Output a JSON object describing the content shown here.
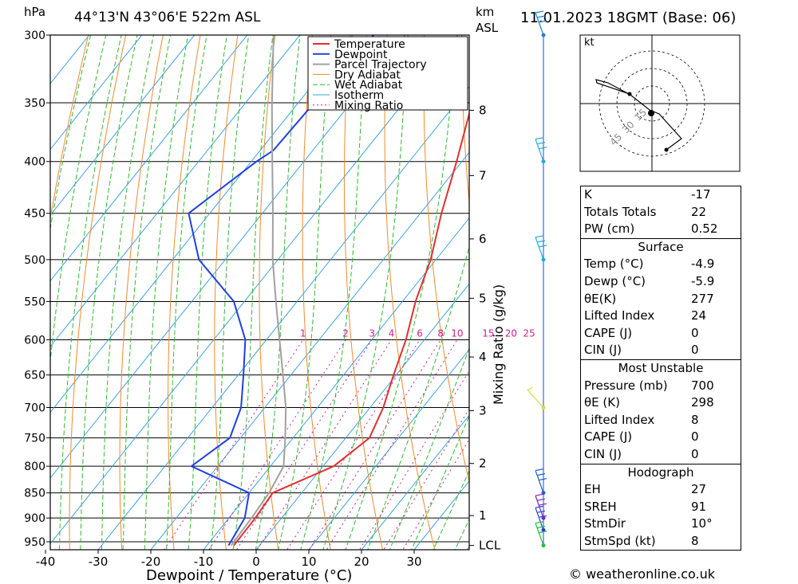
{
  "header": {
    "location": "44°13'N  43°06'E  522m  ASL",
    "datetime": "11.01.2023  18GMT  (Base: 06)",
    "unit_left": "hPa",
    "unit_km": "km",
    "unit_asl": "ASL"
  },
  "chart_data": {
    "type": "line",
    "title": "44°13'N  43°06'E  522m  ASL",
    "xlabel": "Dewpoint / Temperature (°C)",
    "ylabel": "hPa",
    "right_label": "Mixing Ratio (g/kg)",
    "x_ticks": [
      -40,
      -30,
      -20,
      -10,
      0,
      10,
      20,
      30
    ],
    "pressure_levels": [
      300,
      350,
      400,
      450,
      500,
      550,
      600,
      650,
      700,
      750,
      800,
      850,
      900,
      950
    ],
    "height_km_ticks": [
      {
        "label": "8",
        "p": 356
      },
      {
        "label": "7",
        "p": 413
      },
      {
        "label": "6",
        "p": 477
      },
      {
        "label": "5",
        "p": 546
      },
      {
        "label": "4",
        "p": 624
      },
      {
        "label": "3",
        "p": 705
      },
      {
        "label": "2",
        "p": 795
      },
      {
        "label": "1",
        "p": 895
      },
      {
        "label": "LCL",
        "p": 958
      }
    ],
    "mixing_ratio_labels": [
      "1",
      "2",
      "3",
      "4",
      "6",
      "8",
      "10",
      "15",
      "20",
      "25"
    ],
    "legend": [
      "Temperature",
      "Dewpoint",
      "Parcel Trajectory",
      "Dry Adiabat",
      "Wet Adiabat",
      "Isotherm",
      "Mixing Ratio"
    ],
    "legend_position": "top-right",
    "series": [
      {
        "name": "Temperature",
        "color": "#e03030",
        "points": [
          [
            -34,
            300
          ],
          [
            -27,
            350
          ],
          [
            -21,
            400
          ],
          [
            -16,
            450
          ],
          [
            -11,
            500
          ],
          [
            -7.5,
            550
          ],
          [
            -3.5,
            600
          ],
          [
            -0.5,
            650
          ],
          [
            2.5,
            700
          ],
          [
            4.5,
            750
          ],
          [
            2,
            800
          ],
          [
            -5.5,
            850
          ],
          [
            -5,
            900
          ],
          [
            -4.9,
            958
          ]
        ]
      },
      {
        "name": "Dewpoint",
        "color": "#2040e0",
        "points": [
          [
            -56,
            300
          ],
          [
            -57,
            350
          ],
          [
            -57.5,
            390
          ],
          [
            -59,
            400
          ],
          [
            -64,
            450
          ],
          [
            -55,
            500
          ],
          [
            -42,
            550
          ],
          [
            -34,
            600
          ],
          [
            -29,
            650
          ],
          [
            -24.5,
            700
          ],
          [
            -22,
            750
          ],
          [
            -25,
            800
          ],
          [
            -10,
            850
          ],
          [
            -7,
            900
          ],
          [
            -5.9,
            958
          ]
        ]
      },
      {
        "name": "Parcel Trajectory",
        "color": "#a0a0a0",
        "points": [
          [
            -75,
            300
          ],
          [
            -65,
            350
          ],
          [
            -56,
            400
          ],
          [
            -48,
            450
          ],
          [
            -41,
            500
          ],
          [
            -34,
            550
          ],
          [
            -27.5,
            600
          ],
          [
            -21.5,
            650
          ],
          [
            -16,
            700
          ],
          [
            -11.5,
            750
          ],
          [
            -7.5,
            800
          ],
          [
            -6.2,
            850
          ],
          [
            -5.7,
            900
          ],
          [
            -5.4,
            958
          ]
        ]
      }
    ],
    "wind_barbs": [
      {
        "p": 300,
        "color": "#2080d0"
      },
      {
        "p": 400,
        "color": "#20b0d0"
      },
      {
        "p": 500,
        "color": "#20b0d0"
      },
      {
        "p": 700,
        "color": "#c8e040"
      },
      {
        "p": 850,
        "color": "#2060d0"
      },
      {
        "p": 900,
        "color": "#8020c0"
      },
      {
        "p": 925,
        "color": "#2040e0"
      },
      {
        "p": 958,
        "color": "#20c040"
      }
    ],
    "hodograph": {
      "unit": "kt",
      "rings": [
        "15",
        "30",
        "45"
      ]
    }
  },
  "indices": {
    "k_label": "K",
    "k_value": "-17",
    "tt_label": "Totals Totals",
    "tt_value": "22",
    "pw_label": "PW (cm)",
    "pw_value": "0.52",
    "surface": {
      "title": "Surface",
      "rows": [
        {
          "label": "Temp (°C)",
          "value": "-4.9"
        },
        {
          "label": "Dewp (°C)",
          "value": "-5.9"
        },
        {
          "label": "θE(K)",
          "value": "277"
        },
        {
          "label": "Lifted Index",
          "value": "24"
        },
        {
          "label": "CAPE (J)",
          "value": "0"
        },
        {
          "label": "CIN (J)",
          "value": "0"
        }
      ]
    },
    "most_unstable": {
      "title": "Most Unstable",
      "rows": [
        {
          "label": "Pressure (mb)",
          "value": "700"
        },
        {
          "label": "θE (K)",
          "value": "298"
        },
        {
          "label": "Lifted Index",
          "value": "8"
        },
        {
          "label": "CAPE (J)",
          "value": "0"
        },
        {
          "label": "CIN (J)",
          "value": "0"
        }
      ]
    },
    "hodograph": {
      "title": "Hodograph",
      "rows": [
        {
          "label": "EH",
          "value": "27"
        },
        {
          "label": "SREH",
          "value": "91"
        },
        {
          "label": "StmDir",
          "value": "10°"
        },
        {
          "label": "StmSpd (kt)",
          "value": "8"
        }
      ]
    }
  },
  "footer": {
    "credit": "© weatheronline.co.uk"
  }
}
